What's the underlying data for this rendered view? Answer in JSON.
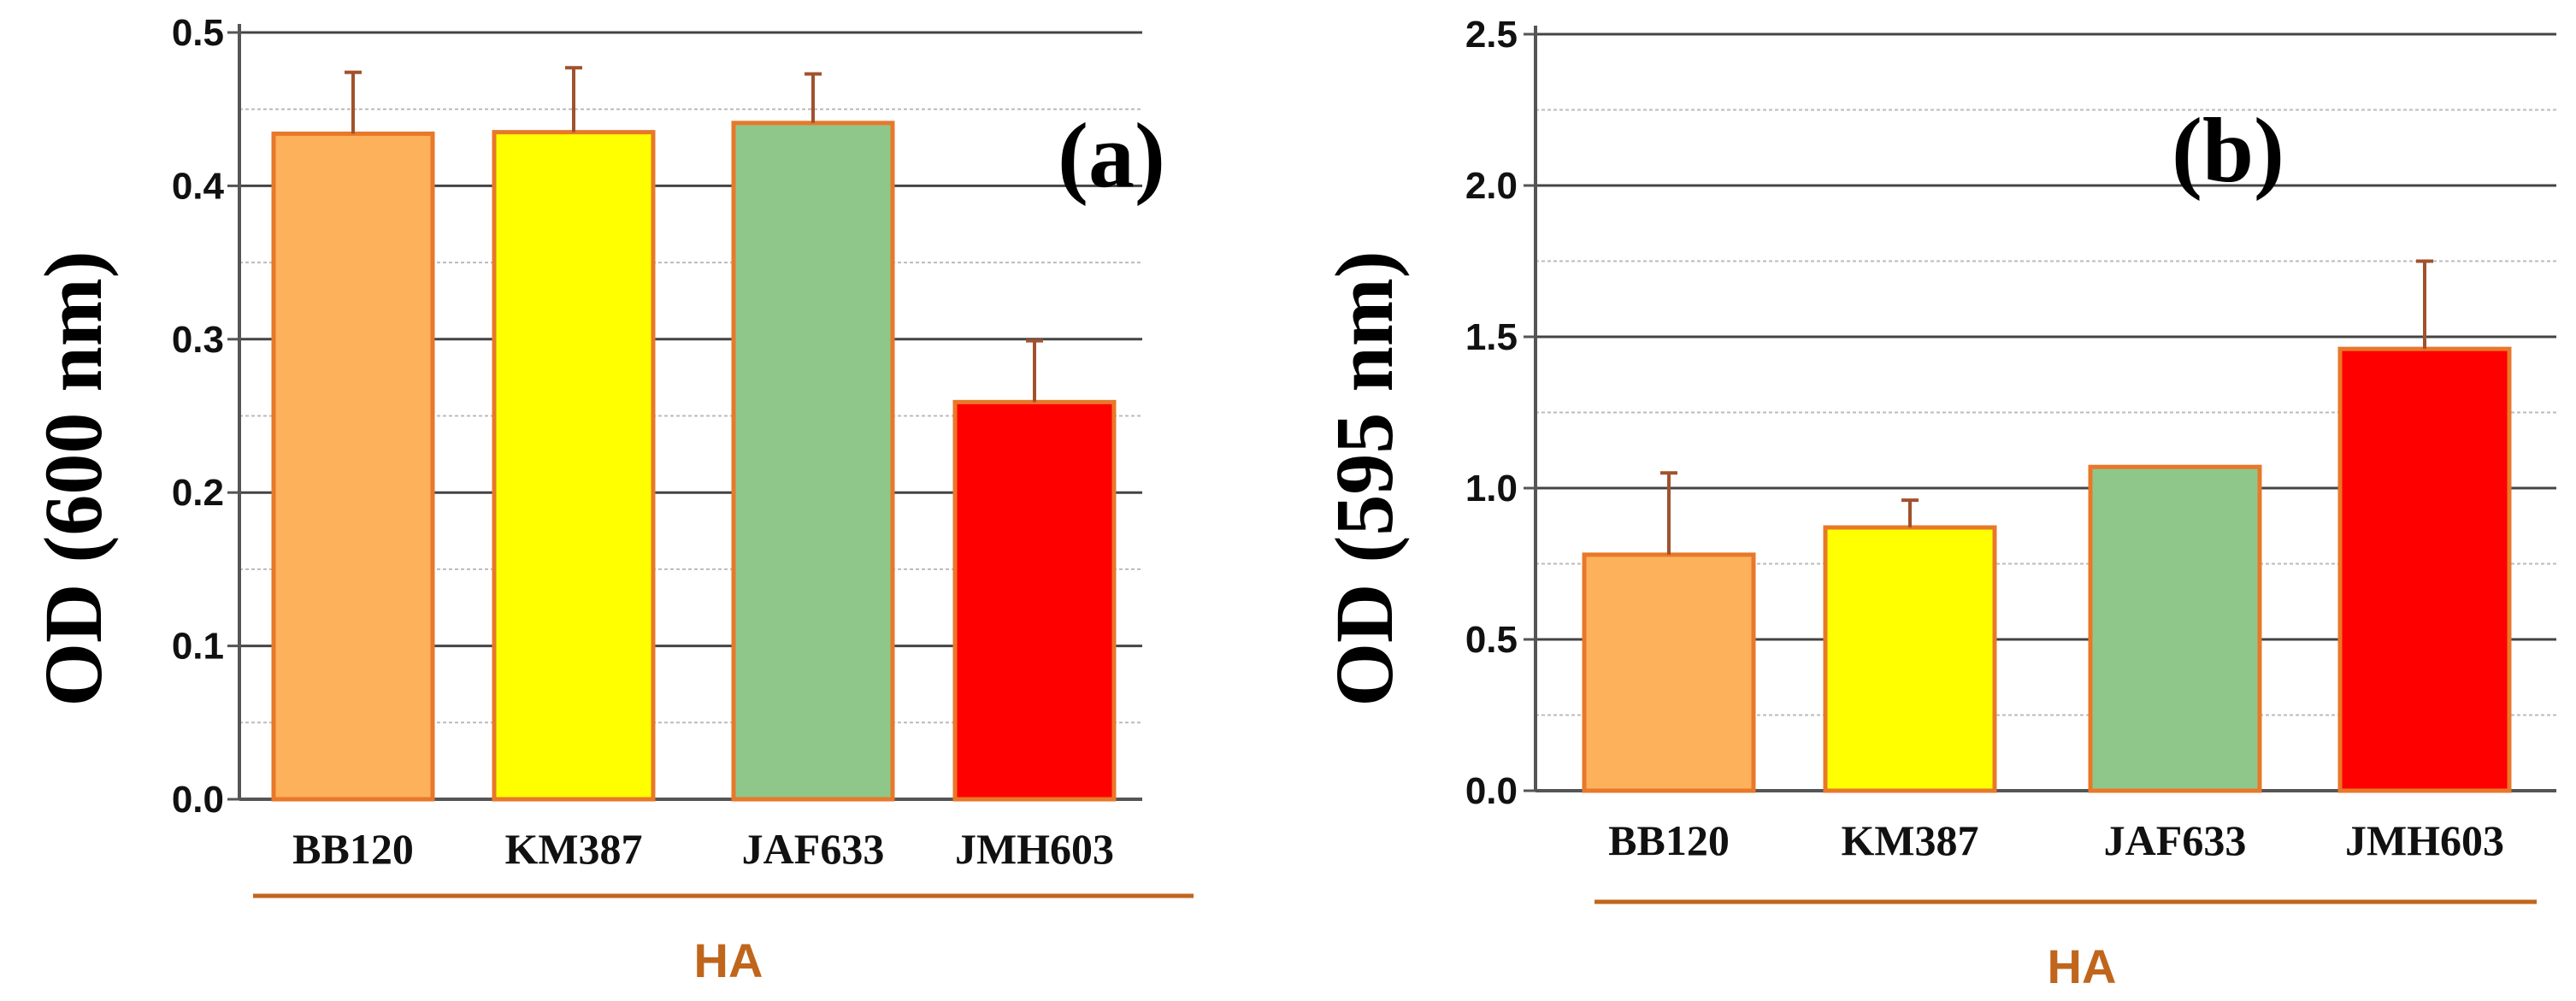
{
  "chart_data": [
    {
      "type": "bar",
      "panel_label": "(a)",
      "categories": [
        "BB120",
        "KM387",
        "JAF633",
        "JMH603"
      ],
      "values": [
        0.434,
        0.435,
        0.441,
        0.259
      ],
      "errors": [
        0.04,
        0.042,
        0.032,
        0.04
      ],
      "colors": [
        "#FDB15A",
        "#FFFF00",
        "#8FC78A",
        "#FF0000"
      ],
      "ylabel": "OD (600 nm)",
      "xlabel": "HA",
      "ylim": [
        0,
        0.5
      ],
      "yticks": [
        0.0,
        0.1,
        0.2,
        0.3,
        0.4,
        0.5
      ],
      "ytick_labels": [
        "0.0",
        "0.1",
        "0.2",
        "0.3",
        "0.4",
        "0.5"
      ],
      "grid": true
    },
    {
      "type": "bar",
      "panel_label": "(b)",
      "categories": [
        "BB120",
        "KM387",
        "JAF633",
        "JMH603"
      ],
      "values": [
        0.78,
        0.87,
        1.07,
        1.46
      ],
      "errors": [
        0.27,
        0.09,
        0.0,
        0.29
      ],
      "colors": [
        "#FDB15A",
        "#FFFF00",
        "#8FC78A",
        "#FF0000"
      ],
      "ylabel": "OD (595 nm)",
      "xlabel": "HA",
      "ylim": [
        0,
        2.5
      ],
      "yticks": [
        0.0,
        0.5,
        1.0,
        1.5,
        2.0,
        2.5
      ],
      "ytick_labels": [
        "0.0",
        "0.5",
        "1.0",
        "1.5",
        "2.0",
        "2.5"
      ],
      "grid": true
    }
  ],
  "style": {
    "bar_edge": "#E8782A",
    "error_bar": "#A0522D",
    "axis": "#555555",
    "gridline": "#444444",
    "minor_gridline": "#BBBBBB",
    "group_label": "#C0661C"
  }
}
